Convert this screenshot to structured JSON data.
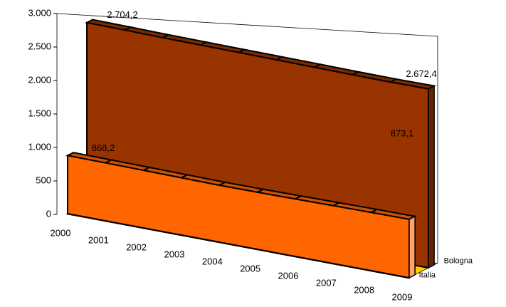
{
  "chart_data": {
    "type": "area3d",
    "categories": [
      "2000",
      "2001",
      "2002",
      "2003",
      "2004",
      "2005",
      "2006",
      "2007",
      "2008",
      "2009"
    ],
    "series": [
      {
        "name": "Italia",
        "color": "#ff6600",
        "values": [
          868.2,
          865,
          860,
          855,
          850,
          852,
          858,
          864,
          870,
          873.1
        ],
        "value_labels": [
          "868,2",
          null,
          null,
          null,
          null,
          null,
          null,
          null,
          null,
          "873,1"
        ]
      },
      {
        "name": "Bologna",
        "color": "#993300",
        "values": [
          2704.2,
          2700,
          2692,
          2688,
          2684,
          2680,
          2676,
          2670,
          2668,
          2672.4
        ],
        "value_labels": [
          "2.704,2",
          null,
          null,
          null,
          null,
          null,
          null,
          null,
          null,
          "2.672,4"
        ]
      }
    ],
    "ylim": [
      0,
      3000
    ],
    "yticks": [
      0,
      500,
      {
        "value": 1000,
        "label": "1.000"
      },
      {
        "value": 1500,
        "label": "1.500"
      },
      {
        "value": 2000,
        "label": "2.000"
      },
      {
        "value": 2500,
        "label": "2.500"
      },
      {
        "value": 3000,
        "label": "3.000"
      }
    ],
    "floor_color": "#ffcc00"
  }
}
